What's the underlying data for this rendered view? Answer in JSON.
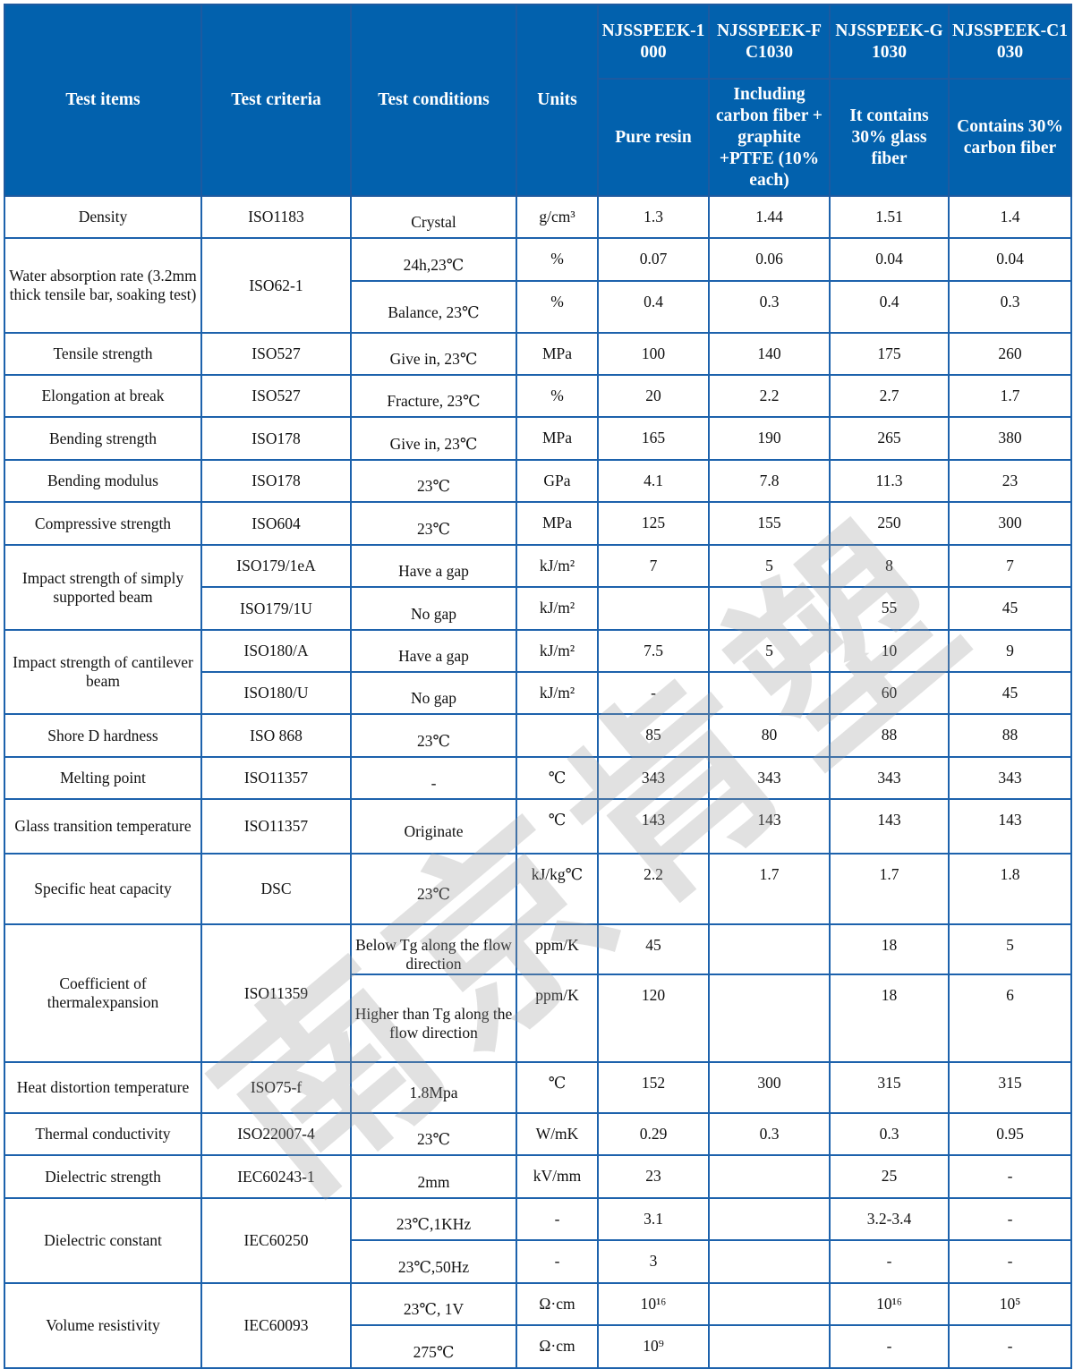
{
  "watermark": "南京肯塑",
  "header": {
    "test_items": "Test items",
    "test_criteria": "Test criteria",
    "test_conditions": "Test conditions",
    "units": "Units",
    "grades": [
      {
        "name": "NJSSPEEK-1000",
        "description": "Pure resin"
      },
      {
        "name": "NJSSPEEK-FC1030",
        "description": "Including carbon fiber + graphite +PTFE (10% each)"
      },
      {
        "name": "NJSSPEEK-G1030",
        "description": "It contains 30% glass fiber"
      },
      {
        "name": "NJSSPEEK-C1030",
        "description": "Contains 30% carbon fiber"
      }
    ]
  },
  "rows": [
    [
      {
        "t": "Density"
      },
      {
        "t": "ISO1183"
      },
      {
        "t": "Crystal"
      },
      {
        "t": "g/cm³"
      },
      {
        "t": "1.3"
      },
      {
        "t": "1.44"
      },
      {
        "t": "1.51"
      },
      {
        "t": "1.4"
      }
    ],
    [
      {
        "t": "Water absorption rate (3.2mm thick tensile bar, soaking test)",
        "rs": 2
      },
      {
        "t": "ISO62-1",
        "rs": 2
      },
      {
        "t": "24h,23℃"
      },
      {
        "t": "%"
      },
      {
        "t": "0.07"
      },
      {
        "t": "0.06"
      },
      {
        "t": "0.04"
      },
      {
        "t": "0.04"
      }
    ],
    [
      {
        "t": "Balance, 23℃"
      },
      {
        "t": "%"
      },
      {
        "t": "0.4"
      },
      {
        "t": "0.3"
      },
      {
        "t": "0.4"
      },
      {
        "t": "0.3"
      }
    ],
    [
      {
        "t": "Tensile strength"
      },
      {
        "t": "ISO527"
      },
      {
        "t": "Give in, 23℃"
      },
      {
        "t": "MPa"
      },
      {
        "t": "100"
      },
      {
        "t": "140"
      },
      {
        "t": "175"
      },
      {
        "t": "260"
      }
    ],
    [
      {
        "t": "Elongation at break"
      },
      {
        "t": "ISO527"
      },
      {
        "t": "Fracture, 23℃"
      },
      {
        "t": "%"
      },
      {
        "t": "20"
      },
      {
        "t": "2.2"
      },
      {
        "t": "2.7"
      },
      {
        "t": "1.7"
      }
    ],
    [
      {
        "t": "Bending strength"
      },
      {
        "t": "ISO178"
      },
      {
        "t": "Give in, 23℃"
      },
      {
        "t": "MPa"
      },
      {
        "t": "165"
      },
      {
        "t": "190"
      },
      {
        "t": "265"
      },
      {
        "t": "380"
      }
    ],
    [
      {
        "t": "Bending modulus"
      },
      {
        "t": "ISO178"
      },
      {
        "t": "23℃"
      },
      {
        "t": "GPa"
      },
      {
        "t": "4.1"
      },
      {
        "t": "7.8"
      },
      {
        "t": "11.3"
      },
      {
        "t": "23"
      }
    ],
    [
      {
        "t": "Compressive strength"
      },
      {
        "t": "ISO604"
      },
      {
        "t": "23℃"
      },
      {
        "t": "MPa"
      },
      {
        "t": "125"
      },
      {
        "t": "155"
      },
      {
        "t": "250"
      },
      {
        "t": "300"
      }
    ],
    [
      {
        "t": "Impact strength of simply supported beam",
        "rs": 2
      },
      {
        "t": "ISO179/1eA"
      },
      {
        "t": "Have a gap"
      },
      {
        "t": "kJ/m²"
      },
      {
        "t": "7"
      },
      {
        "t": "5"
      },
      {
        "t": "8"
      },
      {
        "t": "7"
      }
    ],
    [
      {
        "t": "ISO179/1U"
      },
      {
        "t": "No gap"
      },
      {
        "t": "kJ/m²"
      },
      {
        "t": ""
      },
      {
        "t": ""
      },
      {
        "t": "55"
      },
      {
        "t": "45"
      }
    ],
    [
      {
        "t": "Impact strength of cantilever beam",
        "rs": 2
      },
      {
        "t": "ISO180/A"
      },
      {
        "t": "Have a gap"
      },
      {
        "t": "kJ/m²"
      },
      {
        "t": "7.5"
      },
      {
        "t": "5"
      },
      {
        "t": "10"
      },
      {
        "t": "9"
      }
    ],
    [
      {
        "t": "ISO180/U"
      },
      {
        "t": "No gap"
      },
      {
        "t": "kJ/m²"
      },
      {
        "t": "-"
      },
      {
        "t": ""
      },
      {
        "t": "60"
      },
      {
        "t": "45"
      }
    ],
    [
      {
        "t": "Shore D hardness"
      },
      {
        "t": "ISO 868"
      },
      {
        "t": "23℃"
      },
      {
        "t": ""
      },
      {
        "t": "85"
      },
      {
        "t": "80"
      },
      {
        "t": "88"
      },
      {
        "t": "88"
      }
    ],
    [
      {
        "t": "Melting point"
      },
      {
        "t": "ISO11357"
      },
      {
        "t": "-"
      },
      {
        "t": "℃"
      },
      {
        "t": "343"
      },
      {
        "t": "343"
      },
      {
        "t": "343"
      },
      {
        "t": "343"
      }
    ],
    [
      {
        "t": "Glass transition temperature"
      },
      {
        "t": "ISO11357"
      },
      {
        "t": "Originate"
      },
      {
        "t": "℃"
      },
      {
        "t": "143"
      },
      {
        "t": "143"
      },
      {
        "t": "143"
      },
      {
        "t": "143"
      }
    ],
    [
      {
        "t": "Specific heat capacity"
      },
      {
        "t": "DSC"
      },
      {
        "t": "23℃"
      },
      {
        "t": "kJ/kg℃"
      },
      {
        "t": "2.2"
      },
      {
        "t": "1.7"
      },
      {
        "t": "1.7"
      },
      {
        "t": "1.8"
      }
    ],
    [
      {
        "t": "Coefficient of thermalexpansion",
        "rs": 2
      },
      {
        "t": "ISO11359",
        "rs": 2
      },
      {
        "t": "Below Tg along the flow direction"
      },
      {
        "t": "ppm/K"
      },
      {
        "t": "45"
      },
      {
        "t": ""
      },
      {
        "t": "18"
      },
      {
        "t": "5"
      }
    ],
    [
      {
        "t": "Higher than Tg along the flow direction"
      },
      {
        "t": "ppm/K"
      },
      {
        "t": "120"
      },
      {
        "t": ""
      },
      {
        "t": "18"
      },
      {
        "t": "6"
      }
    ],
    [
      {
        "t": "Heat distortion temperature"
      },
      {
        "t": "ISO75-f"
      },
      {
        "t": "1.8Mpa"
      },
      {
        "t": "℃"
      },
      {
        "t": "152"
      },
      {
        "t": "300"
      },
      {
        "t": "315"
      },
      {
        "t": "315"
      }
    ],
    [
      {
        "t": "Thermal conductivity"
      },
      {
        "t": "ISO22007-4"
      },
      {
        "t": "23℃"
      },
      {
        "t": "W/mK"
      },
      {
        "t": "0.29"
      },
      {
        "t": "0.3"
      },
      {
        "t": "0.3"
      },
      {
        "t": "0.95"
      }
    ],
    [
      {
        "t": "Dielectric strength"
      },
      {
        "t": "IEC60243-1"
      },
      {
        "t": "2mm"
      },
      {
        "t": "kV/mm"
      },
      {
        "t": "23"
      },
      {
        "t": ""
      },
      {
        "t": "25"
      },
      {
        "t": "-"
      }
    ],
    [
      {
        "t": "Dielectric constant",
        "rs": 2
      },
      {
        "t": "IEC60250",
        "rs": 2
      },
      {
        "t": "23℃,1KHz"
      },
      {
        "t": "-"
      },
      {
        "t": "3.1"
      },
      {
        "t": ""
      },
      {
        "t": "3.2-3.4"
      },
      {
        "t": "-"
      }
    ],
    [
      {
        "t": "23℃,50Hz"
      },
      {
        "t": "-"
      },
      {
        "t": "3"
      },
      {
        "t": ""
      },
      {
        "t": "-"
      },
      {
        "t": "-"
      }
    ],
    [
      {
        "t": "Volume resistivity",
        "rs": 2
      },
      {
        "t": "IEC60093",
        "rs": 2
      },
      {
        "t": "23℃, 1V"
      },
      {
        "t": "Ω·cm"
      },
      {
        "t": "10¹⁶"
      },
      {
        "t": ""
      },
      {
        "t": "10¹⁶"
      },
      {
        "t": "10⁵"
      }
    ],
    [
      {
        "t": "275℃"
      },
      {
        "t": "Ω·cm"
      },
      {
        "t": "10⁹"
      },
      {
        "t": ""
      },
      {
        "t": "-"
      },
      {
        "t": "-"
      }
    ]
  ]
}
